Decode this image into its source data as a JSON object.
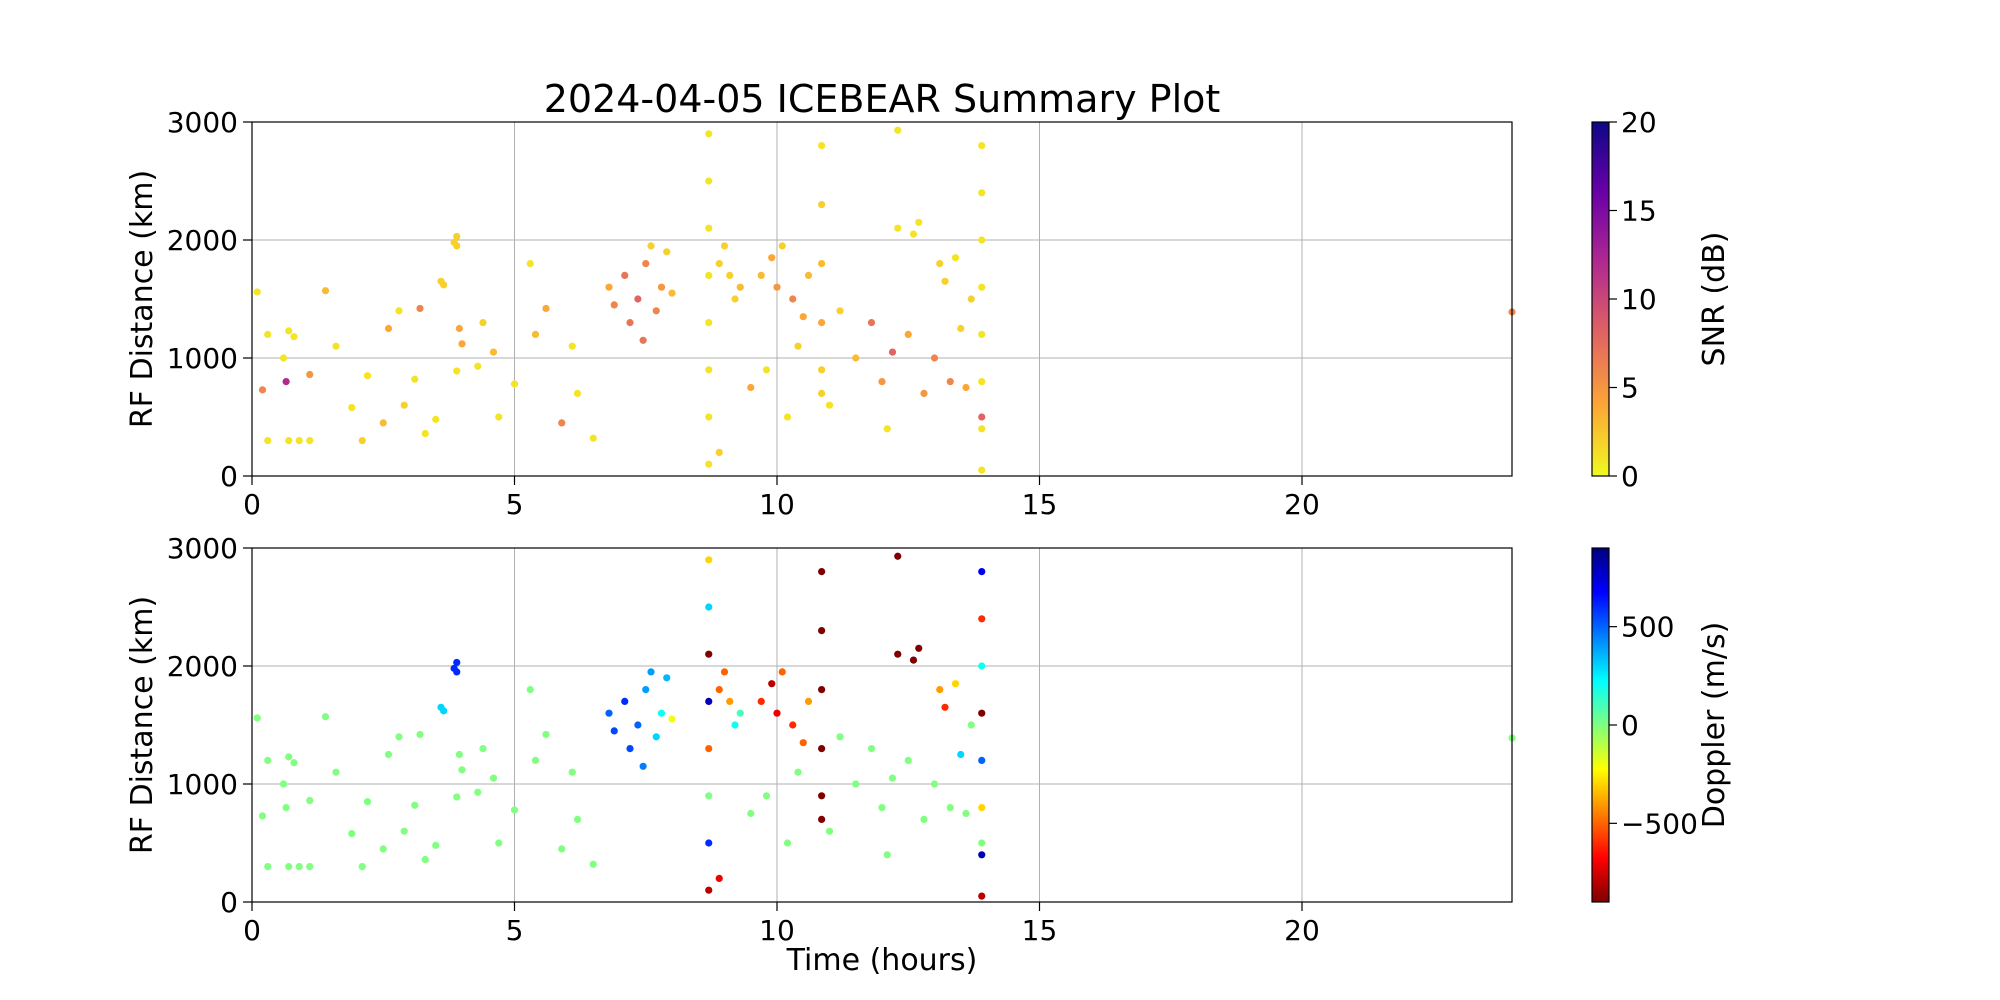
{
  "chart_data": [
    {
      "type": "scatter",
      "title": "2024-04-05 ICEBEAR Summary Plot",
      "ylabel": "RF Distance (km)",
      "xlim": [
        0,
        24
      ],
      "xticks": [
        0,
        5,
        10,
        15,
        20
      ],
      "ylim": [
        0,
        3000
      ],
      "yticks": [
        0,
        1000,
        2000,
        3000
      ],
      "grid": true,
      "x": [
        0.1,
        0.2,
        0.3,
        0.3,
        0.6,
        0.7,
        0.8,
        0.7,
        0.9,
        1.1,
        0.65,
        1.1,
        1.4,
        1.6,
        1.9,
        2.1,
        2.2,
        2.5,
        2.6,
        2.8,
        2.9,
        3.1,
        3.3,
        3.2,
        3.5,
        3.6,
        3.65,
        3.85,
        3.9,
        3.9,
        3.95,
        3.9,
        4.0,
        4.3,
        4.4,
        4.6,
        4.7,
        5.0,
        5.3,
        5.4,
        5.6,
        5.9,
        6.1,
        6.2,
        6.5,
        6.8,
        6.9,
        7.1,
        7.2,
        7.35,
        7.45,
        7.5,
        7.7,
        7.8,
        7.9,
        8.0,
        7.6,
        8.7,
        8.7,
        8.7,
        8.7,
        8.7,
        8.7,
        8.7,
        8.7,
        8.9,
        8.9,
        9.1,
        9.2,
        9.3,
        9.0,
        9.5,
        9.7,
        9.9,
        10.0,
        10.1,
        10.3,
        10.5,
        10.6,
        10.4,
        9.8,
        10.2,
        10.85,
        10.85,
        10.85,
        10.85,
        10.85,
        10.85,
        11.2,
        11.5,
        11.8,
        12.0,
        12.2,
        12.3,
        12.3,
        12.6,
        12.7,
        12.5,
        12.8,
        13.0,
        13.1,
        13.2,
        13.4,
        13.5,
        13.3,
        13.6,
        13.7,
        12.1,
        11.0,
        13.9,
        13.9,
        13.9,
        13.9,
        13.9,
        13.9,
        13.9,
        13.9,
        13.9,
        24.0
      ],
      "y": [
        1560,
        730,
        1200,
        300,
        1000,
        1230,
        1180,
        300,
        300,
        300,
        800,
        860,
        1570,
        1100,
        580,
        300,
        850,
        450,
        1250,
        1400,
        600,
        820,
        360,
        1420,
        480,
        1650,
        1620,
        1980,
        1950,
        2030,
        1250,
        890,
        1120,
        930,
        1300,
        1050,
        500,
        780,
        1800,
        1200,
        1420,
        450,
        1100,
        700,
        320,
        1600,
        1450,
        1700,
        1300,
        1500,
        1150,
        1800,
        1400,
        1600,
        1900,
        1550,
        1950,
        100,
        500,
        900,
        1300,
        1700,
        2100,
        2500,
        2900,
        200,
        1800,
        1700,
        1500,
        1600,
        1950,
        750,
        1700,
        1850,
        1600,
        1950,
        1500,
        1350,
        1700,
        1100,
        900,
        500,
        900,
        1300,
        1800,
        2300,
        2800,
        700,
        1400,
        1000,
        1300,
        800,
        1050,
        2930,
        2100,
        2050,
        2150,
        1200,
        700,
        1000,
        1800,
        1650,
        1850,
        1250,
        800,
        750,
        1500,
        400,
        600,
        50,
        400,
        800,
        1200,
        1600,
        2000,
        2400,
        2800,
        500,
        1390
      ],
      "c": [
        1,
        6,
        1,
        1,
        1,
        1,
        1,
        1,
        1,
        1,
        12,
        5,
        3,
        1,
        1,
        2,
        1,
        3,
        4,
        1,
        2,
        1,
        1,
        6,
        1,
        2,
        2,
        2,
        2,
        2,
        4,
        1,
        4,
        1,
        2,
        3,
        1,
        1,
        1,
        3,
        4,
        6,
        1,
        1,
        1,
        4,
        6,
        7,
        7,
        8,
        7,
        6,
        6,
        5,
        2,
        3,
        2,
        1,
        1,
        1,
        1,
        1,
        1,
        1,
        1,
        2,
        2,
        2,
        2,
        3,
        2,
        4,
        3,
        4,
        5,
        2,
        6,
        4,
        3,
        2,
        1,
        1,
        2,
        4,
        3,
        2,
        1,
        2,
        2,
        3,
        7,
        5,
        8,
        1,
        1,
        1,
        1,
        4,
        5,
        6,
        2,
        2,
        1,
        2,
        6,
        4,
        2,
        1,
        1,
        1,
        1,
        1,
        1,
        1,
        1,
        1,
        1,
        8,
        6
      ],
      "colorbar": {
        "label": "SNR (dB)",
        "colormap": "plasma_r",
        "lim": [
          0,
          20
        ],
        "ticks": [
          0,
          5,
          10,
          15,
          20
        ]
      }
    },
    {
      "type": "scatter",
      "ylabel": "RF Distance (km)",
      "xlabel": "Time (hours)",
      "xlim": [
        0,
        24
      ],
      "xticks": [
        0,
        5,
        10,
        15,
        20
      ],
      "ylim": [
        0,
        3000
      ],
      "yticks": [
        0,
        1000,
        2000,
        3000
      ],
      "grid": true,
      "x": [
        0.1,
        0.2,
        0.3,
        0.3,
        0.6,
        0.7,
        0.8,
        0.7,
        0.9,
        1.1,
        0.65,
        1.1,
        1.4,
        1.6,
        1.9,
        2.1,
        2.2,
        2.5,
        2.6,
        2.8,
        2.9,
        3.1,
        3.3,
        3.2,
        3.5,
        3.6,
        3.65,
        3.85,
        3.9,
        3.9,
        3.95,
        3.9,
        4.0,
        4.3,
        4.4,
        4.6,
        4.7,
        5.0,
        5.3,
        5.4,
        5.6,
        5.9,
        6.1,
        6.2,
        6.5,
        6.8,
        6.9,
        7.1,
        7.2,
        7.35,
        7.45,
        7.5,
        7.7,
        7.8,
        7.9,
        8.0,
        7.6,
        8.7,
        8.7,
        8.7,
        8.7,
        8.7,
        8.7,
        8.7,
        8.7,
        8.9,
        8.9,
        9.1,
        9.2,
        9.3,
        9.0,
        9.5,
        9.7,
        9.9,
        10.0,
        10.1,
        10.3,
        10.5,
        10.6,
        10.4,
        9.8,
        10.2,
        10.85,
        10.85,
        10.85,
        10.85,
        10.85,
        10.85,
        11.2,
        11.5,
        11.8,
        12.0,
        12.2,
        12.3,
        12.3,
        12.6,
        12.7,
        12.5,
        12.8,
        13.0,
        13.1,
        13.2,
        13.4,
        13.5,
        13.3,
        13.6,
        13.7,
        12.1,
        11.0,
        13.9,
        13.9,
        13.9,
        13.9,
        13.9,
        13.9,
        13.9,
        13.9,
        13.9,
        24.0
      ],
      "y": [
        1560,
        730,
        1200,
        300,
        1000,
        1230,
        1180,
        300,
        300,
        300,
        800,
        860,
        1570,
        1100,
        580,
        300,
        850,
        450,
        1250,
        1400,
        600,
        820,
        360,
        1420,
        480,
        1650,
        1620,
        1980,
        1950,
        2030,
        1250,
        890,
        1120,
        930,
        1300,
        1050,
        500,
        780,
        1800,
        1200,
        1420,
        450,
        1100,
        700,
        320,
        1600,
        1450,
        1700,
        1300,
        1500,
        1150,
        1800,
        1400,
        1600,
        1900,
        1550,
        1950,
        100,
        500,
        900,
        1300,
        1700,
        2100,
        2500,
        2900,
        200,
        1800,
        1700,
        1500,
        1600,
        1950,
        750,
        1700,
        1850,
        1600,
        1950,
        1500,
        1350,
        1700,
        1100,
        900,
        500,
        900,
        1300,
        1800,
        2300,
        2800,
        700,
        1400,
        1000,
        1300,
        800,
        1050,
        2930,
        2100,
        2050,
        2150,
        1200,
        700,
        1000,
        1800,
        1650,
        1850,
        1250,
        800,
        750,
        1500,
        400,
        600,
        50,
        400,
        800,
        1200,
        1600,
        2000,
        2400,
        2800,
        500,
        1390
      ],
      "c": [
        0,
        0,
        0,
        0,
        0,
        0,
        0,
        0,
        0,
        0,
        0,
        0,
        0,
        0,
        0,
        0,
        0,
        0,
        0,
        0,
        0,
        0,
        0,
        0,
        0,
        300,
        300,
        600,
        600,
        600,
        0,
        0,
        0,
        0,
        0,
        0,
        0,
        0,
        0,
        0,
        0,
        0,
        0,
        0,
        0,
        500,
        550,
        600,
        550,
        500,
        450,
        400,
        300,
        200,
        350,
        -200,
        400,
        -800,
        600,
        0,
        -500,
        800,
        -900,
        300,
        -300,
        -700,
        -500,
        -400,
        200,
        100,
        -500,
        0,
        -600,
        -800,
        -700,
        -500,
        -600,
        -500,
        -400,
        0,
        0,
        0,
        -900,
        -900,
        -900,
        -900,
        -900,
        -900,
        0,
        0,
        0,
        0,
        0,
        -900,
        -900,
        -900,
        -900,
        0,
        0,
        0,
        -400,
        -600,
        -300,
        300,
        0,
        0,
        0,
        0,
        0,
        -800,
        800,
        -300,
        500,
        -900,
        200,
        -600,
        700,
        0,
        0
      ],
      "colorbar": {
        "label": "Doppler (m/s)",
        "colormap": "jet_r",
        "lim": [
          -900,
          900
        ],
        "ticks": [
          {
            "value": -500,
            "label": "−500"
          },
          0,
          500
        ]
      }
    }
  ]
}
